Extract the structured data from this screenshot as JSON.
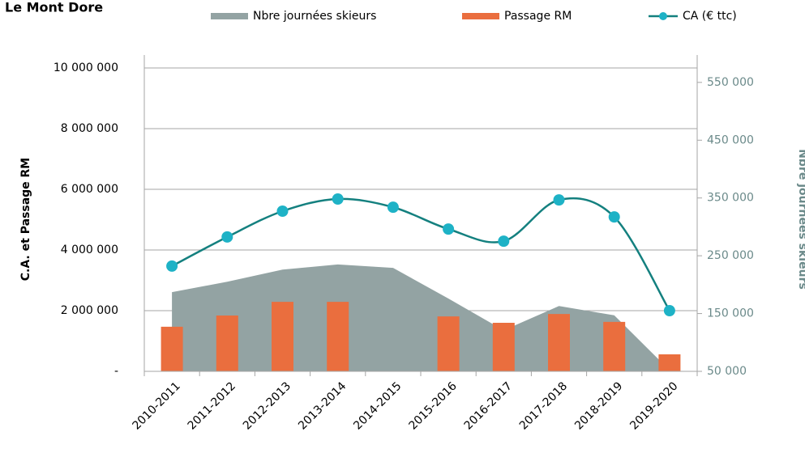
{
  "chart_data": {
    "type": "combo",
    "title": "Le Mont Dore",
    "y_label": "C.A. et Passage RM",
    "y2_label": "Nbre journées skieurs",
    "categories": [
      "2010-2011",
      "2011-2012",
      "2012-2013",
      "2013-2014",
      "2014-2015",
      "2015-2016",
      "2016-2017",
      "2017-2018",
      "2018-2019",
      "2019-2020"
    ],
    "series": [
      {
        "name": "Nbre journées skieurs",
        "kind": "area",
        "axis": "y2",
        "color": "#93a3a3",
        "values": [
          187000,
          205000,
          226000,
          235000,
          229000,
          176000,
          121000,
          163000,
          147000,
          52000
        ]
      },
      {
        "name": "Passage RM",
        "kind": "bar",
        "color": "#ea6e3e",
        "values": [
          1470000,
          1840000,
          2290000,
          2290000,
          null,
          1810000,
          1600000,
          1890000,
          1630000,
          560000
        ]
      },
      {
        "name": "CA (€ ttc)",
        "kind": "line",
        "color": "#14807f",
        "marker_color": "#1eb2c6",
        "values": [
          3470000,
          4430000,
          5280000,
          5680000,
          5410000,
          4690000,
          4290000,
          5650000,
          5090000,
          2000000
        ]
      }
    ],
    "ylim": [
      0,
      10000000
    ],
    "yticks": [
      {
        "value": 0,
        "label": "-"
      },
      {
        "value": 2000000,
        "label": "2 000 000"
      },
      {
        "value": 4000000,
        "label": "4 000 000"
      },
      {
        "value": 6000000,
        "label": "6 000 000"
      },
      {
        "value": 8000000,
        "label": "8 000 000"
      },
      {
        "value": 10000000,
        "label": "10 000 000"
      }
    ],
    "y2lim": [
      50000,
      575000
    ],
    "y2ticks": [
      {
        "value": 50000,
        "label": "50 000"
      },
      {
        "value": 150000,
        "label": "150 000"
      },
      {
        "value": 250000,
        "label": "250 000"
      },
      {
        "value": 350000,
        "label": "350 000"
      },
      {
        "value": 450000,
        "label": "450 000"
      },
      {
        "value": 550000,
        "label": "550 000"
      }
    ],
    "grid": true
  }
}
